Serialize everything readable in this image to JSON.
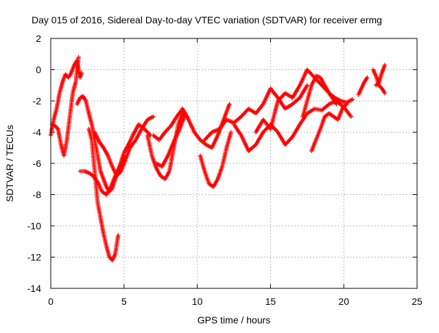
{
  "chart_data": {
    "type": "scatter",
    "title": "Day 015 of 2016, Sidereal Day-to-day VTEC variation (SDTVAR) for receiver ermg",
    "xlabel": "GPS time / hours",
    "ylabel": "SDTVAR / TECUs",
    "xlim": [
      0,
      25
    ],
    "ylim": [
      -14,
      2
    ],
    "x_ticks": [
      0,
      5,
      10,
      15,
      20,
      25
    ],
    "y_ticks": [
      -14,
      -12,
      -10,
      -8,
      -6,
      -4,
      -2,
      0,
      2
    ],
    "grid": true,
    "marker": "plus",
    "color": "#ff0000",
    "series": [
      {
        "x": [
          0.0,
          0.2,
          0.4,
          0.6,
          0.8,
          1.0,
          1.2,
          1.4,
          1.6,
          1.8,
          1.9,
          2.0,
          2.1
        ],
        "y": [
          -4.2,
          -3.2,
          -2.5,
          -1.5,
          -0.8,
          -0.3,
          -0.5,
          -0.2,
          0.3,
          0.6,
          0.0,
          -0.5,
          -0.2
        ]
      },
      {
        "x": [
          0.1,
          0.3,
          0.5,
          0.7,
          0.9,
          1.1,
          1.3,
          1.5,
          1.7,
          1.9
        ],
        "y": [
          -3.5,
          -3.6,
          -3.8,
          -4.8,
          -5.5,
          -4.5,
          -3.0,
          -1.5,
          -0.8,
          0.8
        ]
      },
      {
        "x": [
          1.8,
          2.0,
          2.2,
          2.4,
          2.6,
          2.8,
          3.0,
          3.2,
          3.4,
          3.6,
          3.8,
          4.0,
          4.2,
          4.4,
          4.6,
          4.8,
          5.0
        ],
        "y": [
          -2.2,
          -1.8,
          -1.7,
          -2.0,
          -2.8,
          -3.5,
          -4.5,
          -5.5,
          -6.5,
          -7.0,
          -7.5,
          -7.8,
          -7.6,
          -7.0,
          -6.5,
          -6.0,
          -5.5
        ]
      },
      {
        "x": [
          2.6,
          2.8,
          3.0,
          3.2,
          3.4,
          3.6,
          3.8,
          4.0,
          4.2,
          4.4,
          4.6
        ],
        "y": [
          -3.8,
          -4.5,
          -6.5,
          -8.5,
          -9.5,
          -10.5,
          -11.3,
          -12.0,
          -12.2,
          -11.8,
          -10.6
        ]
      },
      {
        "x": [
          2.0,
          2.3,
          2.6,
          2.9,
          3.2,
          3.5,
          3.8,
          4.1,
          4.4,
          4.7,
          5.0,
          5.3,
          5.6,
          6.0,
          6.4,
          6.8
        ],
        "y": [
          -6.5,
          -6.5,
          -6.6,
          -6.8,
          -7.2,
          -7.8,
          -8.0,
          -7.5,
          -6.8,
          -6.2,
          -5.3,
          -4.8,
          -4.2,
          -3.5,
          -3.8,
          -4.2
        ]
      },
      {
        "x": [
          3.0,
          3.3,
          3.6,
          3.9,
          4.2,
          4.5,
          4.8,
          5.1,
          5.4,
          5.8,
          6.2,
          6.6,
          7.0
        ],
        "y": [
          -4.0,
          -4.6,
          -5.0,
          -5.5,
          -6.2,
          -6.8,
          -6.5,
          -5.8,
          -5.0,
          -4.5,
          -3.8,
          -3.2,
          -3.0
        ]
      },
      {
        "x": [
          6.6,
          6.9,
          7.2,
          7.5,
          7.8,
          8.1,
          8.4,
          8.7,
          9.0,
          9.3
        ],
        "y": [
          -4.2,
          -5.5,
          -6.3,
          -6.8,
          -7.0,
          -6.5,
          -5.0,
          -3.5,
          -2.8,
          -3.0
        ]
      },
      {
        "x": [
          7.0,
          7.4,
          7.8,
          8.2,
          8.6,
          9.0,
          9.4,
          9.8,
          10.2,
          10.6,
          11.0,
          11.4,
          11.8,
          12.2
        ],
        "y": [
          -4.2,
          -4.5,
          -4.0,
          -3.6,
          -3.0,
          -2.5,
          -3.2,
          -4.0,
          -4.5,
          -4.8,
          -5.0,
          -4.2,
          -3.2,
          -2.2
        ]
      },
      {
        "x": [
          7.2,
          7.6,
          8.0,
          8.4,
          8.8,
          9.2
        ],
        "y": [
          -6.0,
          -6.2,
          -5.5,
          -4.6,
          -3.8,
          -2.8
        ]
      },
      {
        "x": [
          10.2,
          10.5,
          10.8,
          11.1,
          11.4,
          11.7,
          12.0,
          12.3
        ],
        "y": [
          -5.5,
          -6.5,
          -7.3,
          -7.5,
          -7.0,
          -6.2,
          -5.0,
          -4.0
        ]
      },
      {
        "x": [
          10.5,
          11.0,
          11.5,
          12.0,
          12.5,
          13.0,
          13.5,
          14.0,
          14.5,
          15.0,
          15.5,
          16.0,
          16.5,
          17.0,
          17.5
        ],
        "y": [
          -4.5,
          -4.0,
          -3.8,
          -3.2,
          -3.4,
          -3.0,
          -2.5,
          -2.8,
          -2.2,
          -1.2,
          -1.8,
          -2.5,
          -2.2,
          -1.8,
          -1.0
        ]
      },
      {
        "x": [
          12.5,
          13.0,
          13.5,
          14.0,
          14.5,
          15.0,
          15.5,
          16.0,
          16.5,
          17.0,
          17.5,
          18.0,
          18.5,
          19.0,
          19.5,
          20.0,
          20.5
        ],
        "y": [
          -3.5,
          -4.2,
          -5.2,
          -4.8,
          -4.0,
          -3.5,
          -4.0,
          -4.8,
          -4.3,
          -3.5,
          -2.8,
          -2.5,
          -2.6,
          -2.2,
          -2.0,
          -2.4,
          -3.0
        ]
      },
      {
        "x": [
          14.0,
          14.5,
          15.0,
          15.5,
          16.0,
          16.5,
          17.0,
          17.5,
          18.0,
          18.5,
          19.0,
          19.5
        ],
        "y": [
          -4.0,
          -3.2,
          -3.8,
          -2.0,
          -1.5,
          -1.8,
          -1.0,
          0.0,
          -0.5,
          -1.0,
          -1.5,
          -2.2
        ]
      },
      {
        "x": [
          17.2,
          17.5,
          17.8,
          18.1,
          18.4,
          18.7,
          19.0,
          19.4,
          19.8,
          20.2,
          20.6
        ],
        "y": [
          -3.0,
          -2.0,
          -1.0,
          -0.4,
          -0.5,
          -1.0,
          -1.5,
          -1.8,
          -2.0,
          -2.1,
          -1.9
        ]
      },
      {
        "x": [
          17.8,
          18.1,
          18.4,
          18.7,
          19.0,
          19.3,
          19.6,
          19.9,
          20.2
        ],
        "y": [
          -5.2,
          -4.5,
          -3.8,
          -3.0,
          -2.8,
          -3.0,
          -3.2,
          -2.5,
          -2.2
        ]
      },
      {
        "x": [
          21.0,
          21.2,
          21.4,
          21.6
        ],
        "y": [
          -1.6,
          -1.2,
          -0.8,
          -0.5
        ]
      },
      {
        "x": [
          22.0,
          22.2,
          22.4,
          22.6,
          22.8
        ],
        "y": [
          0.0,
          -0.4,
          -1.0,
          -1.2,
          -1.5
        ]
      },
      {
        "x": [
          22.2,
          22.4,
          22.6,
          22.8
        ],
        "y": [
          -1.0,
          -0.8,
          -0.2,
          0.3
        ]
      }
    ]
  }
}
